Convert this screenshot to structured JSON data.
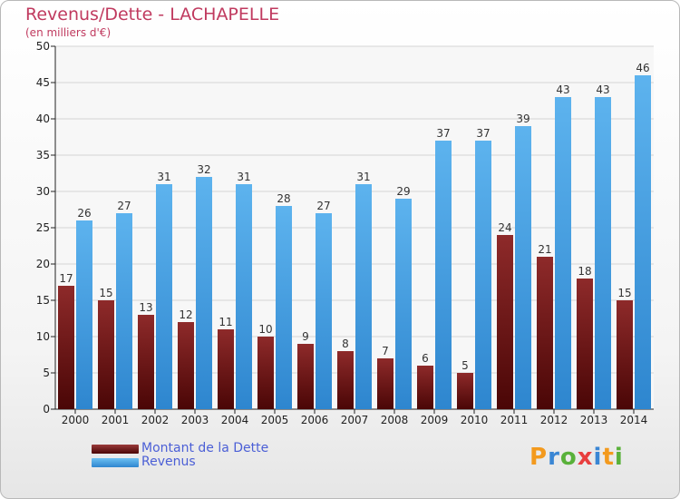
{
  "header": {
    "title": "Revenus/Dette - LACHAPELLE",
    "subtitle": "(en milliers d'€)"
  },
  "logo": {
    "text": "Proxiti",
    "letters": [
      {
        "ch": "P",
        "color": "#f39a1e"
      },
      {
        "ch": "r",
        "color": "#3a86d4"
      },
      {
        "ch": "o",
        "color": "#59b13a"
      },
      {
        "ch": "x",
        "color": "#e83e3e"
      },
      {
        "ch": "i",
        "color": "#3a86d4"
      },
      {
        "ch": "t",
        "color": "#f39a1e"
      },
      {
        "ch": "i",
        "color": "#59b13a"
      }
    ]
  },
  "legend": {
    "items": [
      {
        "label": "Montant de la Dette",
        "color": "#7a1f1f"
      },
      {
        "label": "Revenus",
        "color": "#4aa3e6"
      }
    ]
  },
  "chart_data": {
    "type": "bar",
    "title": "Revenus/Dette - LACHAPELLE",
    "subtitle": "(en milliers d'€)",
    "categories": [
      "2000",
      "2001",
      "2002",
      "2003",
      "2004",
      "2005",
      "2006",
      "2007",
      "2008",
      "2009",
      "2010",
      "2011",
      "2012",
      "2013",
      "2014"
    ],
    "series": [
      {
        "name": "Montant de la Dette",
        "color": "#7a1f1f",
        "values": [
          17,
          15,
          13,
          12,
          11,
          10,
          9,
          8,
          7,
          6,
          5,
          24,
          21,
          18,
          15
        ]
      },
      {
        "name": "Revenus",
        "color": "#4aa3e6",
        "values": [
          26,
          27,
          31,
          32,
          31,
          28,
          27,
          31,
          29,
          37,
          37,
          39,
          43,
          43,
          46
        ]
      }
    ],
    "ylim": [
      0,
      50
    ],
    "yticks": [
      0,
      5,
      10,
      15,
      20,
      25,
      30,
      35,
      40,
      45,
      50
    ],
    "grid": true,
    "legend_position": "bottom-left"
  }
}
